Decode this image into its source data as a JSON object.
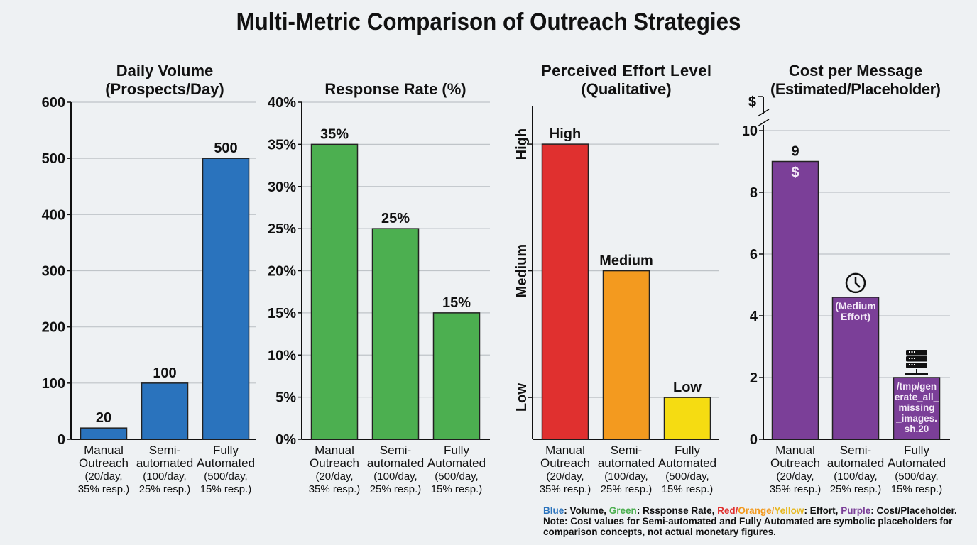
{
  "title": "Multi-Metric Comparison of Outreach Strategies",
  "colors": {
    "blue": "#2a73bd",
    "green": "#4caf50",
    "red": "#e0302f",
    "orange": "#f39a1f",
    "yellow": "#f5dc12",
    "purple": "#7b3f98"
  },
  "chart_data": [
    {
      "type": "bar",
      "title": "Daily Volume\n(Prospects/Day)",
      "categories": [
        "Manual\nOutreach\n(20/day,\n35% resp.)",
        "Semi-\nautomated\n(100/day,\n25% resp.)",
        "Fully\nAutomated\n(500/day,\n15% resp.)"
      ],
      "values": [
        20,
        100,
        500
      ],
      "data_labels": [
        "20",
        "100",
        "500"
      ],
      "ylim": [
        0,
        600
      ],
      "yticks": [
        0,
        100,
        200,
        300,
        400,
        500,
        600
      ],
      "ytick_labels": [
        "0",
        "100",
        "200",
        "300",
        "400",
        "500",
        "600"
      ],
      "bar_colors": [
        "#2a73bd",
        "#2a73bd",
        "#2a73bd"
      ],
      "grid": true
    },
    {
      "type": "bar",
      "title": "Response Rate (%)",
      "categories": [
        "Manual\nOutreach\n(20/day,\n35% resp.)",
        "Semi-\nautomated\n(100/day,\n25% resp.)",
        "Fully\nAutomated\n(500/day,\n15% resp.)"
      ],
      "values": [
        35,
        25,
        15
      ],
      "data_labels": [
        "35%",
        "25%",
        "15%"
      ],
      "ylim": [
        0,
        40
      ],
      "yticks": [
        0,
        5,
        10,
        15,
        20,
        25,
        30,
        35,
        40
      ],
      "ytick_labels": [
        "0%",
        "5%",
        "10%",
        "15%",
        "20%",
        "25%",
        "30%",
        "35%",
        "40%"
      ],
      "bar_colors": [
        "#4caf50",
        "#4caf50",
        "#4caf50"
      ],
      "grid": true
    },
    {
      "type": "bar",
      "title": "Perceived Effort Level\n(Qualitative)",
      "categories": [
        "Manual\nOutreach\n(20/day,\n35% resp.)",
        "Semi-\nautomated\n(100/day,\n25% resp.)",
        "Fully\nAutomated\n(500/day,\n15% resp.)"
      ],
      "values": [
        3,
        2,
        1
      ],
      "data_labels": [
        "High",
        "Medium",
        "Low"
      ],
      "ylim": [
        0.67,
        3.3
      ],
      "yticks": [
        1,
        2,
        3
      ],
      "ytick_labels": [
        "Low",
        "Medium",
        "High"
      ],
      "bar_colors": [
        "#e0302f",
        "#f39a1f",
        "#f5dc12"
      ],
      "grid": true
    },
    {
      "type": "bar",
      "title": "Cost per Message\n(Estimated/Placeholder)",
      "categories": [
        "Manual\nOutreach\n(20/day,\n35% resp.)",
        "Semi-\nautomated\n(100/day,\n25% resp.)",
        "Fully\nAutomated\n(500/day,\n15% resp.)"
      ],
      "values": [
        9,
        4.6,
        2
      ],
      "data_labels": [
        "9",
        "",
        ""
      ],
      "inner_labels": [
        "$",
        "(Medium\nEffort)",
        "/tmp/gen\nerate_all_\nmissing\n_images.\nsh.20"
      ],
      "bar_icons": [
        "",
        "clock-icon",
        "server-icon"
      ],
      "ylim": [
        0,
        10
      ],
      "axis_unit": "$",
      "axis_break": true,
      "yticks": [
        0,
        2,
        4,
        6,
        8,
        10
      ],
      "ytick_labels": [
        "0",
        "2",
        "4",
        "6",
        "8",
        "10"
      ],
      "bar_colors": [
        "#7b3f98",
        "#7b3f98",
        "#7b3f98"
      ],
      "grid": true
    }
  ],
  "footnote": {
    "legend": [
      {
        "text": "Blue",
        "color": "#2a73bd"
      },
      {
        "text": ": Volume, ",
        "color": "#111"
      },
      {
        "text": "Green",
        "color": "#4caf50"
      },
      {
        "text": ": Rssponse Rate, ",
        "color": "#111"
      },
      {
        "text": "Red",
        "color": "#e0302f"
      },
      {
        "text": "/",
        "color": "#e0302f"
      },
      {
        "text": "Orange",
        "color": "#f39a1f"
      },
      {
        "text": "/",
        "color": "#f39a1f"
      },
      {
        "text": "Yellow",
        "color": "#e6b820"
      },
      {
        "text": ": Effort, ",
        "color": "#111"
      },
      {
        "text": "Purple",
        "color": "#7b3f98"
      },
      {
        "text": ": Cost/Placeholder.",
        "color": "#111"
      }
    ],
    "note": "Note: Cost values for Semi-automated and Fully Automated are symbolic placeholders for comparison concepts, not actual monetary figures."
  }
}
